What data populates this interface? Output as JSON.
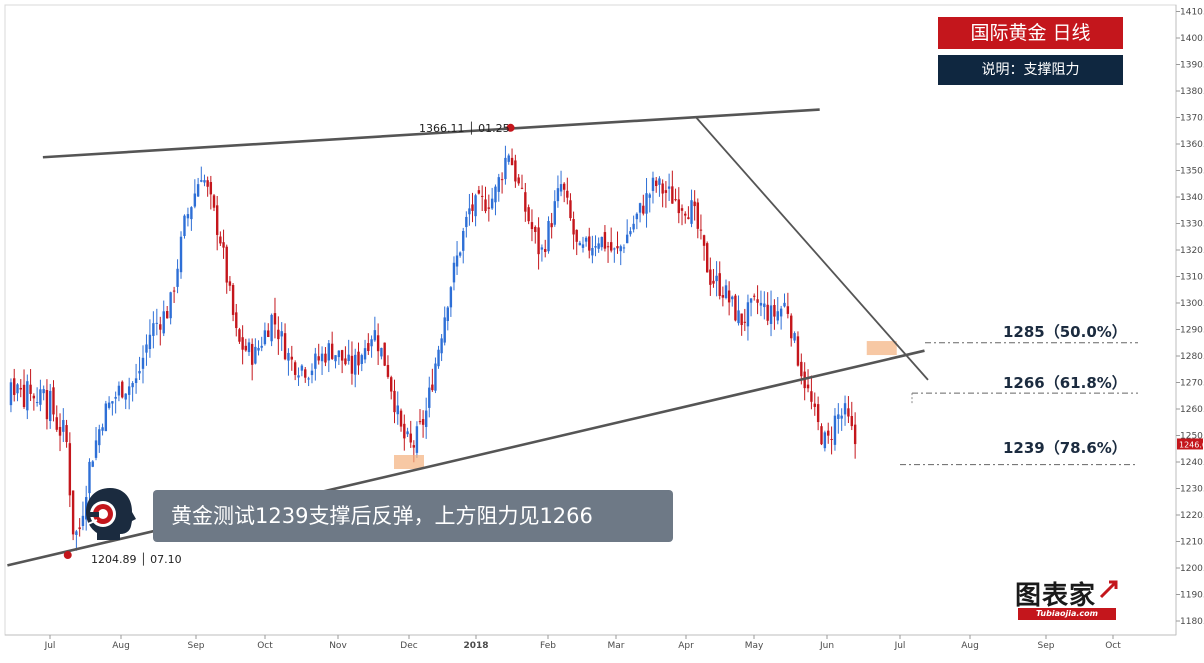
{
  "header": {
    "title": "国际黄金  日线",
    "subtitle": "说明：支撑阻力"
  },
  "levels": [
    {
      "price": 1285,
      "label": "1285（50.0%）"
    },
    {
      "price": 1266,
      "label": "1266（61.8%）"
    },
    {
      "price": 1239,
      "label": "1239（78.6%）"
    }
  ],
  "annotations": {
    "high_label": "1366.11 │ 01.25",
    "low_label": "1204.89 │ 07.10",
    "callout": "黄金测试1239支撑后反弹，上方阻力见1266"
  },
  "logo": {
    "name": "图表家",
    "url_text": "Tubiaojia.com"
  },
  "colors": {
    "up": "#2e6fd6",
    "down": "#c4161c",
    "trendline": "#555555",
    "brand_red": "#c4161c",
    "navy": "#0f2740"
  },
  "chart_data": {
    "type": "candlestick",
    "title": "国际黄金  日线",
    "ylim": [
      1175,
      1412
    ],
    "y_ticks": [
      1180,
      1190,
      1200,
      1210,
      1220,
      1230,
      1240,
      1250,
      1260,
      1270,
      1280,
      1290,
      1300,
      1310,
      1320,
      1330,
      1340,
      1350,
      1360,
      1370,
      1380,
      1390,
      1400,
      1410
    ],
    "y_tick_labels": [
      "1180.000",
      "1190.000",
      "1200.000",
      "1210.000",
      "1220.000",
      "1230.000",
      "1240.000",
      "1250.000",
      "1260.000",
      "1270.000",
      "1280.000",
      "1290.000",
      "1300.000",
      "1310.000",
      "1320.000",
      "1330.000",
      "1340.000",
      "1350.000",
      "1360.000",
      "1370.000",
      "1380.000",
      "1390.000",
      "1400.000",
      "1410.000"
    ],
    "x_tick_labels": [
      "Jul",
      "Aug",
      "Sep",
      "Oct",
      "Nov",
      "Dec",
      "2018",
      "Feb",
      "Mar",
      "Apr",
      "May",
      "Jun",
      "Jul",
      "Aug",
      "Sep",
      "Oct"
    ],
    "last_price": "1246.618",
    "close_path": [
      {
        "m": 0,
        "c": 1263
      },
      {
        "m": 0.12,
        "c": 1252
      },
      {
        "m": 0.22,
        "c": 1252
      },
      {
        "m": 0.32,
        "c": 1215
      },
      {
        "m": 0.4,
        "c": 1212
      },
      {
        "m": 0.55,
        "c": 1238
      },
      {
        "m": 0.75,
        "c": 1258
      },
      {
        "m": 1.0,
        "c": 1268
      },
      {
        "m": 1.2,
        "c": 1270
      },
      {
        "m": 1.4,
        "c": 1290
      },
      {
        "m": 1.65,
        "c": 1298
      },
      {
        "m": 1.85,
        "c": 1330
      },
      {
        "m": 2.08,
        "c": 1350
      },
      {
        "m": 2.35,
        "c": 1325
      },
      {
        "m": 2.6,
        "c": 1285
      },
      {
        "m": 2.85,
        "c": 1280
      },
      {
        "m": 3.1,
        "c": 1295
      },
      {
        "m": 3.35,
        "c": 1278
      },
      {
        "m": 3.6,
        "c": 1275
      },
      {
        "m": 3.9,
        "c": 1283
      },
      {
        "m": 4.2,
        "c": 1275
      },
      {
        "m": 4.5,
        "c": 1290
      },
      {
        "m": 4.7,
        "c": 1275
      },
      {
        "m": 4.9,
        "c": 1250
      },
      {
        "m": 5.05,
        "c": 1245
      },
      {
        "m": 5.25,
        "c": 1258
      },
      {
        "m": 5.6,
        "c": 1305
      },
      {
        "m": 5.9,
        "c": 1335
      },
      {
        "m": 6.25,
        "c": 1340
      },
      {
        "m": 6.45,
        "c": 1358
      },
      {
        "m": 6.65,
        "c": 1338
      },
      {
        "m": 6.9,
        "c": 1318
      },
      {
        "m": 7.2,
        "c": 1345
      },
      {
        "m": 7.45,
        "c": 1318
      },
      {
        "m": 7.75,
        "c": 1325
      },
      {
        "m": 8.0,
        "c": 1318
      },
      {
        "m": 8.25,
        "c": 1330
      },
      {
        "m": 8.55,
        "c": 1345
      },
      {
        "m": 8.8,
        "c": 1340
      },
      {
        "m": 9.1,
        "c": 1335
      },
      {
        "m": 9.35,
        "c": 1310
      },
      {
        "m": 9.55,
        "c": 1305
      },
      {
        "m": 9.8,
        "c": 1293
      },
      {
        "m": 10.05,
        "c": 1300
      },
      {
        "m": 10.25,
        "c": 1295
      },
      {
        "m": 10.45,
        "c": 1300
      },
      {
        "m": 10.55,
        "c": 1285
      },
      {
        "m": 10.7,
        "c": 1270
      },
      {
        "m": 10.85,
        "c": 1255
      },
      {
        "m": 11.0,
        "c": 1246
      },
      {
        "m": 11.12,
        "c": 1257
      },
      {
        "m": 11.25,
        "c": 1258
      },
      {
        "m": 11.4,
        "c": 1246
      }
    ],
    "trendlines": [
      {
        "name": "upper",
        "points": [
          [
            -0.1,
            1355
          ],
          [
            10.9,
            1373
          ]
        ]
      },
      {
        "name": "lower",
        "points": [
          [
            -0.6,
            1201
          ],
          [
            12.35,
            1282
          ]
        ]
      },
      {
        "name": "descending",
        "points": [
          [
            9.15,
            1370
          ],
          [
            12.4,
            1271
          ]
        ]
      }
    ],
    "horizontal_levels": [
      1285,
      1266,
      1239
    ],
    "highlights": [
      {
        "m": 5.0,
        "price": 1240
      },
      {
        "m": 11.75,
        "price": 1283
      }
    ],
    "markers": [
      {
        "m": 0.25,
        "price": 1204.89
      },
      {
        "m": 6.48,
        "price": 1366.11
      }
    ]
  }
}
